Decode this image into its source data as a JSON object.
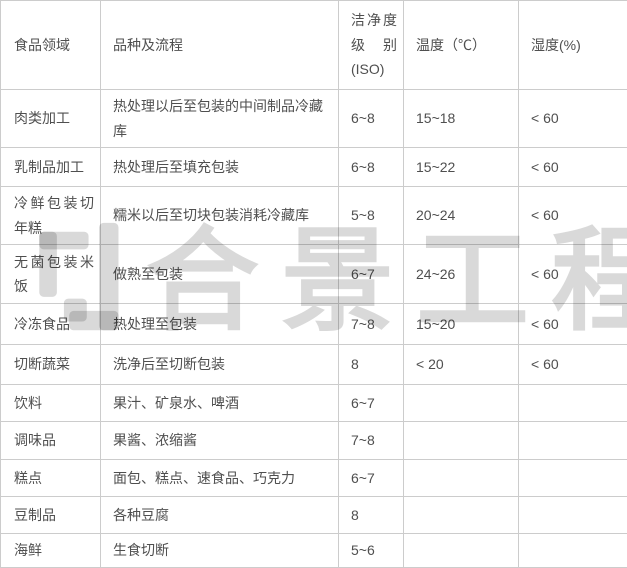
{
  "chart_data": {
    "type": "table",
    "columns": [
      "食品领域",
      "品种及流程",
      "洁净度级别(ISO)",
      "温度（℃）",
      "湿度(%)"
    ],
    "rows": [
      [
        "肉类加工",
        "热处理以后至包装的中间制品冷藏库",
        "6~8",
        "15~18",
        "< 60"
      ],
      [
        "乳制品加工",
        "热处理后至填充包装",
        "6~8",
        "15~22",
        "< 60"
      ],
      [
        "冷鲜包装切年糕",
        "糯米以后至切块包装消耗冷藏库",
        "5~8",
        "20~24",
        "< 60"
      ],
      [
        "无菌包装米饭",
        "做熟至包装",
        "6~7",
        "24~26",
        "< 60"
      ],
      [
        "冷冻食品",
        "热处理至包装",
        "7~8",
        "15~20",
        "< 60"
      ],
      [
        "切断蔬菜",
        "洗净后至切断包装",
        "8",
        "< 20",
        "< 60"
      ],
      [
        "饮料",
        "果汁、矿泉水、啤酒",
        "6~7",
        "",
        ""
      ],
      [
        "调味品",
        "果酱、浓缩酱",
        "7~8",
        "",
        ""
      ],
      [
        "糕点",
        "面包、糕点、速食品、巧克力",
        "6~7",
        "",
        ""
      ],
      [
        "豆制品",
        "各种豆腐",
        "8",
        "",
        ""
      ],
      [
        "海鲜",
        "生食切断",
        "5~6",
        "",
        ""
      ]
    ]
  },
  "watermark": {
    "text": "合景工程"
  },
  "colors": {
    "border": "#cccccc",
    "text": "#4f4f4f",
    "watermark": "rgba(0,0,0,0.15)",
    "background": "#ffffff"
  }
}
